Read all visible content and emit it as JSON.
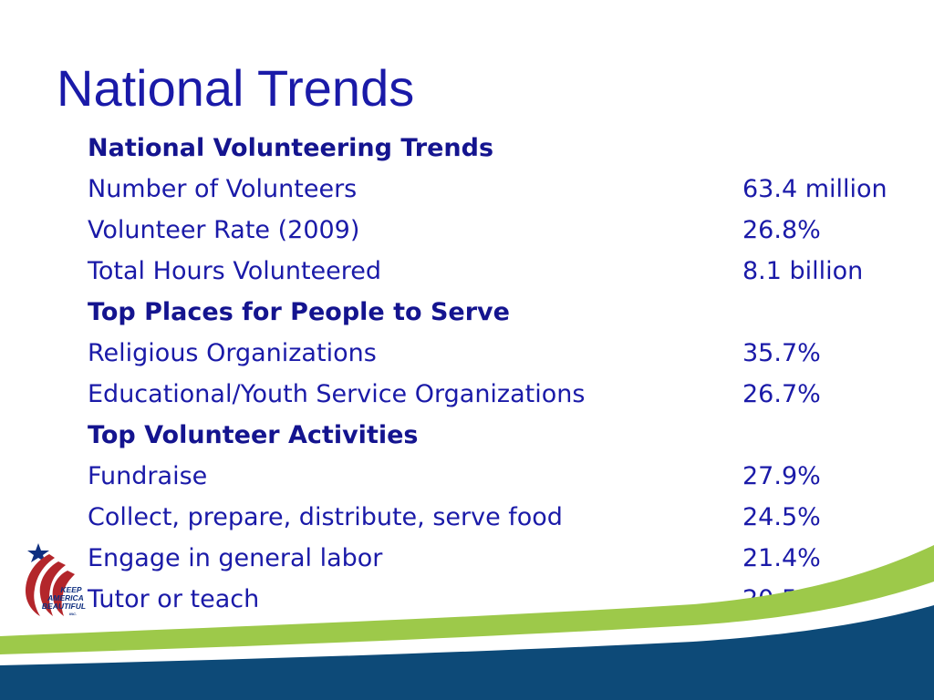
{
  "slide": {
    "title": "National Trends"
  },
  "table": {
    "sections": [
      {
        "heading": "National Volunteering Trends",
        "rows": [
          {
            "label": "Number of Volunteers",
            "value": "63.4 million"
          },
          {
            "label": "Volunteer Rate (2009)",
            "value": "26.8%"
          },
          {
            "label": "Total Hours Volunteered",
            "value": "8.1 billion"
          }
        ]
      },
      {
        "heading": "Top Places for People to Serve",
        "rows": [
          {
            "label": "Religious Organizations",
            "value": "35.7%"
          },
          {
            "label": "Educational/Youth Service Organizations",
            "value": "26.7%"
          }
        ]
      },
      {
        "heading": "Top Volunteer Activities",
        "rows": [
          {
            "label": "Fundraise",
            "value": "27.9%"
          },
          {
            "label": "Collect, prepare, distribute, serve food",
            "value": "24.5%"
          },
          {
            "label": "Engage in general labor",
            "value": "21.4%"
          },
          {
            "label": "Tutor or teach",
            "value": "20.5%"
          }
        ]
      }
    ]
  },
  "logo": {
    "line1": "KEEP",
    "line2": "AMERICA",
    "line3": "BEAUTIFUL",
    "line4": "INC.",
    "icon": "flag-star-icon"
  },
  "colors": {
    "title": "#1a1aa8",
    "wave_green": "#9dc94a",
    "wave_navy": "#0d4a78",
    "logo_red": "#b3262b"
  }
}
